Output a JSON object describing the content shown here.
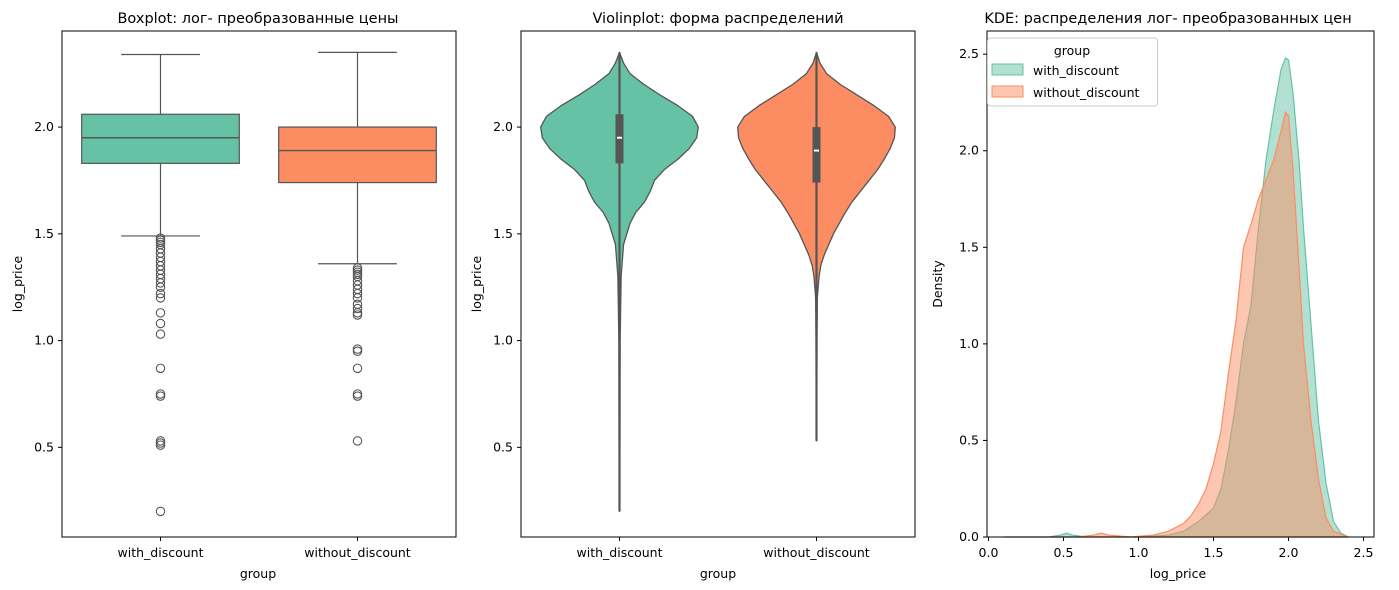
{
  "colors": {
    "with_discount": "#66c2a5",
    "without_discount": "#fc8d62",
    "with_discount_dark": "#5e5e5e",
    "edge": "#555555",
    "kde_overlap": "#b3bea3"
  },
  "chart_data": [
    {
      "type": "box",
      "title": "Boxplot: лог- преобразованные цены",
      "xlabel": "group",
      "ylabel": "log_price",
      "ylim": [
        0.08,
        2.45
      ],
      "yticks": [
        0.5,
        1.0,
        1.5,
        2.0
      ],
      "ytick_labels": [
        "0.5",
        "1.0",
        "1.5",
        "2.0"
      ],
      "categories": [
        "with_discount",
        "without_discount"
      ],
      "boxes": [
        {
          "name": "with_discount",
          "whisker_low": 1.49,
          "q1": 1.83,
          "median": 1.95,
          "q3": 2.06,
          "whisker_high": 2.34,
          "outliers": [
            1.48,
            1.47,
            1.46,
            1.45,
            1.43,
            1.41,
            1.39,
            1.37,
            1.35,
            1.33,
            1.31,
            1.29,
            1.27,
            1.25,
            1.22,
            1.2,
            1.13,
            1.08,
            1.03,
            0.87,
            0.75,
            0.74,
            0.53,
            0.52,
            0.51,
            0.2
          ]
        },
        {
          "name": "without_discount",
          "whisker_low": 1.36,
          "q1": 1.74,
          "median": 1.89,
          "q3": 2.0,
          "whisker_high": 2.35,
          "outliers": [
            1.34,
            1.33,
            1.32,
            1.31,
            1.3,
            1.28,
            1.26,
            1.24,
            1.22,
            1.2,
            1.17,
            1.15,
            1.13,
            1.12,
            0.96,
            0.95,
            0.87,
            0.75,
            0.74,
            0.53
          ]
        }
      ]
    },
    {
      "type": "violin",
      "title": "Violinplot: форма распределений",
      "xlabel": "group",
      "ylabel": "log_price",
      "ylim": [
        0.08,
        2.45
      ],
      "yticks": [
        0.5,
        1.0,
        1.5,
        2.0
      ],
      "ytick_labels": [
        "0.5",
        "1.0",
        "1.5",
        "2.0"
      ],
      "categories": [
        "with_discount",
        "without_discount"
      ],
      "violins": [
        {
          "name": "with_discount",
          "min": 0.2,
          "max": 2.35,
          "q1": 1.83,
          "median": 1.95,
          "q3": 2.06,
          "profile": [
            [
              0.2,
              0.0
            ],
            [
              0.5,
              0.005
            ],
            [
              1.0,
              0.008
            ],
            [
              1.3,
              0.02
            ],
            [
              1.45,
              0.05
            ],
            [
              1.5,
              0.09
            ],
            [
              1.55,
              0.13
            ],
            [
              1.6,
              0.2
            ],
            [
              1.65,
              0.31
            ],
            [
              1.7,
              0.38
            ],
            [
              1.75,
              0.43
            ],
            [
              1.8,
              0.55
            ],
            [
              1.85,
              0.72
            ],
            [
              1.9,
              0.86
            ],
            [
              1.95,
              0.95
            ],
            [
              2.0,
              0.97
            ],
            [
              2.05,
              0.9
            ],
            [
              2.1,
              0.72
            ],
            [
              2.15,
              0.5
            ],
            [
              2.2,
              0.3
            ],
            [
              2.25,
              0.13
            ],
            [
              2.3,
              0.05
            ],
            [
              2.35,
              0.0
            ]
          ]
        },
        {
          "name": "without_discount",
          "min": 0.53,
          "max": 2.35,
          "q1": 1.74,
          "median": 1.89,
          "q3": 2.0,
          "profile": [
            [
              0.53,
              0.0
            ],
            [
              0.8,
              0.004
            ],
            [
              1.0,
              0.006
            ],
            [
              1.2,
              0.01
            ],
            [
              1.3,
              0.03
            ],
            [
              1.35,
              0.05
            ],
            [
              1.4,
              0.09
            ],
            [
              1.5,
              0.2
            ],
            [
              1.6,
              0.34
            ],
            [
              1.65,
              0.42
            ],
            [
              1.7,
              0.52
            ],
            [
              1.75,
              0.62
            ],
            [
              1.8,
              0.72
            ],
            [
              1.85,
              0.8
            ],
            [
              1.9,
              0.87
            ],
            [
              1.95,
              0.92
            ],
            [
              2.0,
              0.93
            ],
            [
              2.05,
              0.85
            ],
            [
              2.1,
              0.68
            ],
            [
              2.15,
              0.48
            ],
            [
              2.2,
              0.28
            ],
            [
              2.25,
              0.12
            ],
            [
              2.3,
              0.04
            ],
            [
              2.35,
              0.0
            ]
          ]
        }
      ]
    },
    {
      "type": "area",
      "title": "KDE: распределения лог- преобразованных цен",
      "xlabel": "log_price",
      "ylabel": "Density",
      "xlim": [
        -0.01,
        2.57
      ],
      "ylim": [
        0,
        2.62
      ],
      "xticks": [
        0.0,
        0.5,
        1.0,
        1.5,
        2.0,
        2.5
      ],
      "xtick_labels": [
        "0.0",
        "0.5",
        "1.0",
        "1.5",
        "2.0",
        "2.5"
      ],
      "yticks": [
        0.0,
        0.5,
        1.0,
        1.5,
        2.0,
        2.5
      ],
      "ytick_labels": [
        "0.0",
        "0.5",
        "1.0",
        "1.5",
        "2.0",
        "2.5"
      ],
      "legend": {
        "title": "group",
        "placement": "top-left"
      },
      "series": [
        {
          "name": "with_discount",
          "x": [
            0.1,
            0.4,
            0.48,
            0.52,
            0.56,
            0.65,
            0.8,
            1.0,
            1.2,
            1.3,
            1.4,
            1.5,
            1.55,
            1.6,
            1.65,
            1.7,
            1.75,
            1.8,
            1.85,
            1.9,
            1.95,
            1.98,
            2.0,
            2.03,
            2.07,
            2.1,
            2.15,
            2.2,
            2.25,
            2.3,
            2.35,
            2.4
          ],
          "y": [
            0.0,
            0.0,
            0.01,
            0.02,
            0.01,
            0.0,
            0.0,
            0.0,
            0.01,
            0.03,
            0.08,
            0.15,
            0.25,
            0.45,
            0.7,
            1.0,
            1.2,
            1.6,
            1.95,
            2.2,
            2.42,
            2.48,
            2.47,
            2.3,
            1.95,
            1.6,
            1.1,
            0.6,
            0.28,
            0.08,
            0.02,
            0.0
          ]
        },
        {
          "name": "without_discount",
          "x": [
            0.1,
            0.6,
            0.7,
            0.75,
            0.8,
            0.95,
            1.1,
            1.2,
            1.3,
            1.35,
            1.4,
            1.45,
            1.5,
            1.55,
            1.6,
            1.65,
            1.7,
            1.75,
            1.8,
            1.85,
            1.9,
            1.95,
            1.98,
            2.0,
            2.03,
            2.07,
            2.1,
            2.15,
            2.2,
            2.25,
            2.3,
            2.4
          ],
          "y": [
            0.0,
            0.0,
            0.01,
            0.02,
            0.01,
            0.0,
            0.01,
            0.03,
            0.07,
            0.11,
            0.17,
            0.25,
            0.38,
            0.55,
            0.85,
            1.12,
            1.5,
            1.62,
            1.75,
            1.85,
            1.95,
            2.1,
            2.2,
            2.18,
            1.9,
            1.4,
            1.0,
            0.6,
            0.3,
            0.1,
            0.03,
            0.0
          ]
        }
      ]
    }
  ]
}
